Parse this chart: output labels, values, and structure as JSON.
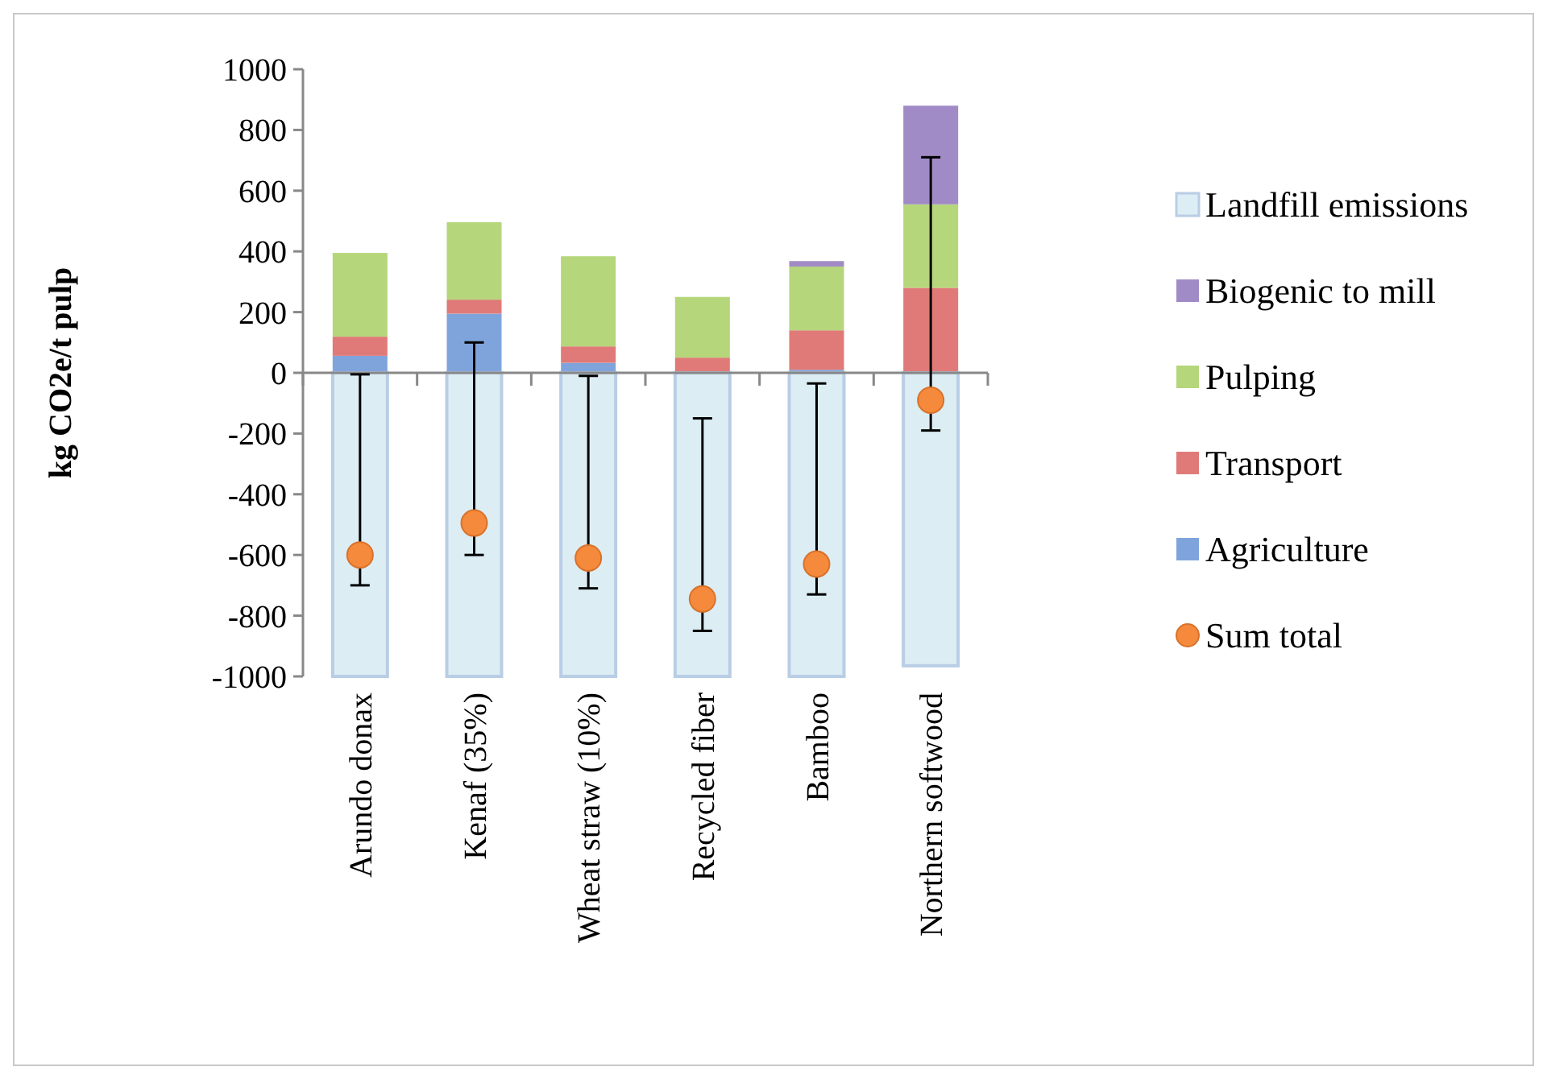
{
  "chart_data": {
    "type": "bar",
    "stacked": true,
    "ylabel": "kg CO2e/t pulp",
    "categories": [
      "Arundo donax",
      "Kenaf (35%)",
      "Wheat straw (10%)",
      "Recycled fiber",
      "Bamboo",
      "Northern softwood"
    ],
    "series": [
      {
        "name": "Agriculture",
        "color": "#7fa4dc",
        "values": [
          56,
          195,
          33,
          0,
          10,
          0
        ]
      },
      {
        "name": "Transport",
        "color": "#e07a78",
        "values": [
          63,
          46,
          54,
          50,
          130,
          280
        ]
      },
      {
        "name": "Pulping",
        "color": "#b5d67a",
        "values": [
          276,
          255,
          297,
          200,
          210,
          275
        ]
      },
      {
        "name": "Biogenic to mill",
        "color": "#a18bc6",
        "values": [
          0,
          0,
          0,
          0,
          18,
          325
        ]
      },
      {
        "name": "Landfill emissions",
        "color": "#dcedf4",
        "values": [
          -1000,
          -1000,
          -1000,
          -1000,
          -1000,
          -965
        ]
      },
      {
        "name": "Sum total",
        "type": "scatter",
        "color": "#f58a3c",
        "marker": "circle",
        "x": [
          "Arundo donax",
          "Kenaf (35%)",
          "Wheat straw (10%)",
          "Recycled fiber",
          "Bamboo",
          "Northern softwood"
        ],
        "values": [
          -600,
          -495,
          -610,
          -745,
          -630,
          -90
        ],
        "errors": [
          [
            -700,
            -5
          ],
          [
            -600,
            100
          ],
          [
            -710,
            -10
          ],
          [
            -850,
            -150
          ],
          [
            -730,
            -35
          ],
          [
            -190,
            710
          ]
        ]
      }
    ],
    "ylim": [
      -1000,
      1000
    ],
    "yticks": [
      -1000,
      -800,
      -600,
      -400,
      -200,
      0,
      200,
      400,
      600,
      800,
      1000
    ],
    "legend": "right"
  }
}
